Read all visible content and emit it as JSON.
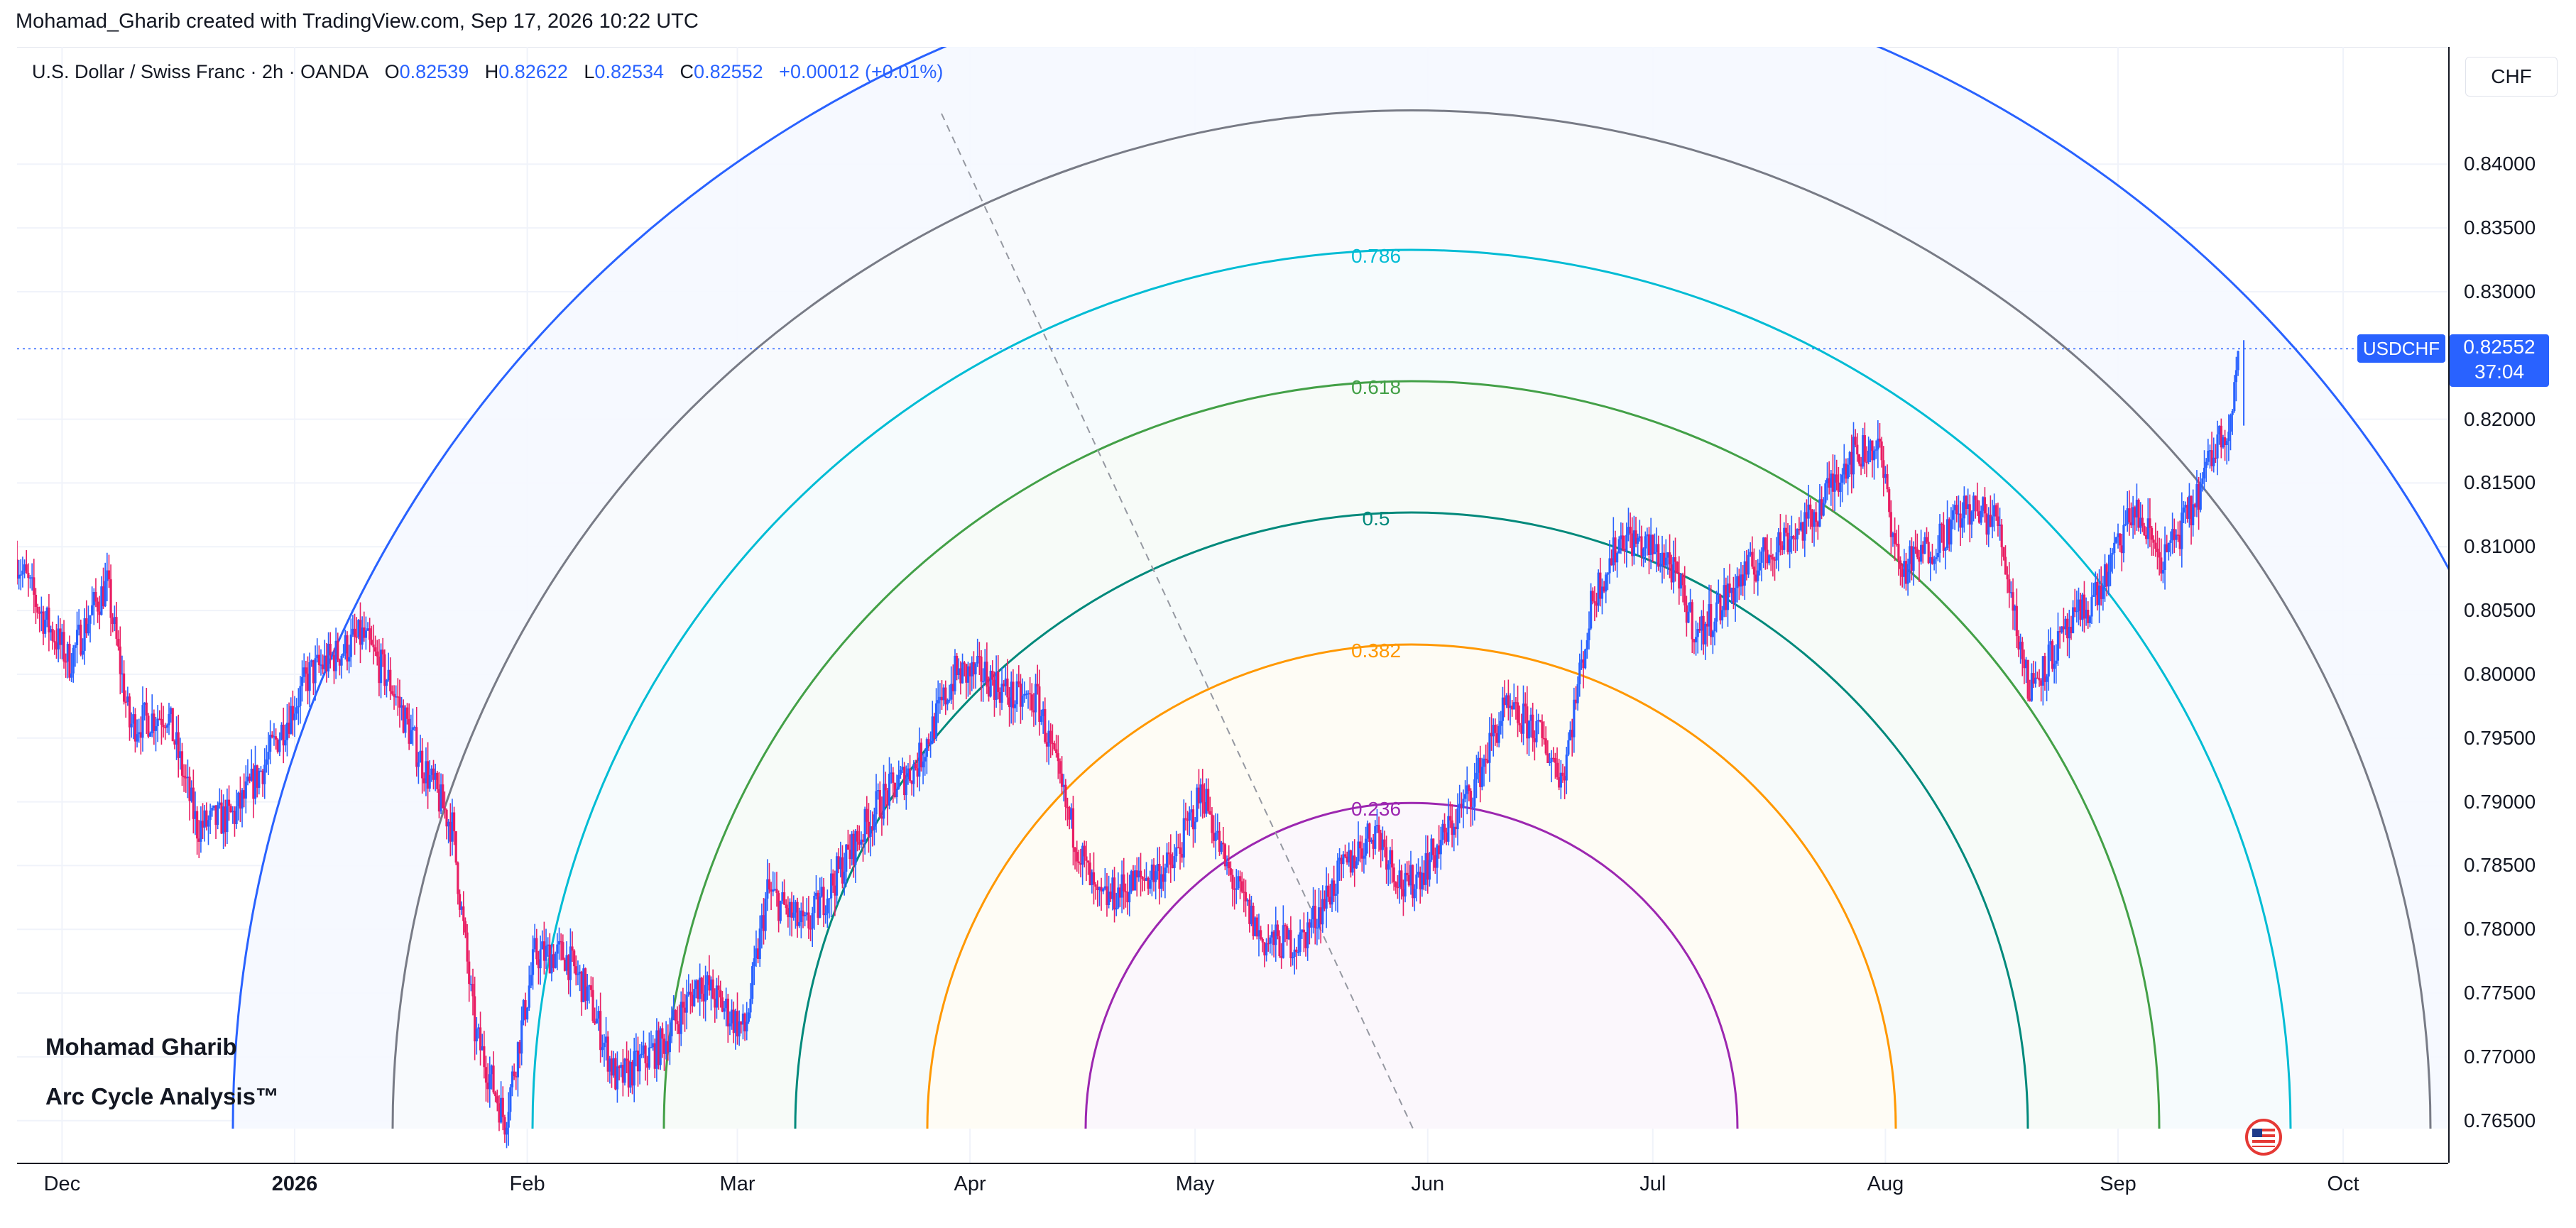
{
  "header": {
    "caption": "Mohamad_Gharib created with TradingView.com, Sep 17, 2026 10:22 UTC"
  },
  "legend": {
    "symbol_desc": "U.S. Dollar / Swiss Franc · 2h · OANDA",
    "open_label": "O",
    "open": "0.82539",
    "high_label": "H",
    "high": "0.82622",
    "low_label": "L",
    "low": "0.82534",
    "close_label": "C",
    "close": "0.82552",
    "change": "+0.00012 (+0.01%)"
  },
  "price_axis": {
    "currency": "CHF",
    "ticks": [
      "0.84000",
      "0.83500",
      "0.83000",
      "0.82000",
      "0.81500",
      "0.81000",
      "0.80500",
      "0.80000",
      "0.79500",
      "0.79000",
      "0.78500",
      "0.78000",
      "0.77500",
      "0.77000",
      "0.76500"
    ]
  },
  "time_axis": {
    "ticks": [
      "Dec",
      "2026",
      "Feb",
      "Mar",
      "Apr",
      "May",
      "Jun",
      "Jul",
      "Aug",
      "Sep",
      "Oct"
    ]
  },
  "last_price": {
    "symbol": "USDCHF",
    "value": "0.82552",
    "countdown": "37:04"
  },
  "watermark": {
    "line1": "Mohamad Gharib",
    "line2": "Arc Cycle Analysis™"
  },
  "colors": {
    "candle_up": "#2962ff",
    "candle_down": "#e91e63",
    "arc_236": "#9c27b0",
    "arc_382": "#ff9800",
    "arc_5": "#00897b",
    "arc_618": "#43a047",
    "arc_786": "#00bcd4",
    "arc_1": "#787b86",
    "arc_outer": "#2962ff"
  },
  "chart_data": {
    "type": "line",
    "title": "U.S. Dollar / Swiss Franc · 2h · OANDA",
    "xlabel": "",
    "ylabel": "",
    "x_range": [
      "2025-11-25",
      "2026-10-15"
    ],
    "ylim": [
      0.7617,
      0.8492
    ],
    "grid": true,
    "series": [
      {
        "name": "USDCHF",
        "points": [
          [
            "2025-11-25",
            0.809
          ],
          [
            "2025-11-28",
            0.805
          ],
          [
            "2025-12-02",
            0.801
          ],
          [
            "2025-12-05",
            0.805
          ],
          [
            "2025-12-07",
            0.807
          ],
          [
            "2025-12-10",
            0.796
          ],
          [
            "2025-12-15",
            0.797
          ],
          [
            "2025-12-19",
            0.788
          ],
          [
            "2025-12-24",
            0.789
          ],
          [
            "2025-12-28",
            0.793
          ],
          [
            "2026-01-03",
            0.8
          ],
          [
            "2026-01-10",
            0.803
          ],
          [
            "2026-01-14",
            0.799
          ],
          [
            "2026-01-18",
            0.793
          ],
          [
            "2026-01-22",
            0.788
          ],
          [
            "2026-01-25",
            0.772
          ],
          [
            "2026-01-29",
            0.765
          ],
          [
            "2026-02-02",
            0.778
          ],
          [
            "2026-02-06",
            0.778
          ],
          [
            "2026-02-09",
            0.775
          ],
          [
            "2026-02-13",
            0.768
          ],
          [
            "2026-02-19",
            0.771
          ],
          [
            "2026-02-24",
            0.776
          ],
          [
            "2026-03-02",
            0.772
          ],
          [
            "2026-03-05",
            0.783
          ],
          [
            "2026-03-10",
            0.78
          ],
          [
            "2026-03-15",
            0.785
          ],
          [
            "2026-03-20",
            0.79
          ],
          [
            "2026-03-25",
            0.793
          ],
          [
            "2026-03-30",
            0.8
          ],
          [
            "2026-04-03",
            0.8
          ],
          [
            "2026-04-07",
            0.798
          ],
          [
            "2026-04-10",
            0.798
          ],
          [
            "2026-04-14",
            0.789
          ],
          [
            "2026-04-18",
            0.782
          ],
          [
            "2026-04-24",
            0.784
          ],
          [
            "2026-04-28",
            0.785
          ],
          [
            "2026-05-02",
            0.791
          ],
          [
            "2026-05-05",
            0.785
          ],
          [
            "2026-05-10",
            0.779
          ],
          [
            "2026-05-15",
            0.779
          ],
          [
            "2026-05-20",
            0.784
          ],
          [
            "2026-05-25",
            0.788
          ],
          [
            "2026-05-29",
            0.783
          ],
          [
            "2026-06-02",
            0.786
          ],
          [
            "2026-06-07",
            0.791
          ],
          [
            "2026-06-11",
            0.797
          ],
          [
            "2026-06-15",
            0.796
          ],
          [
            "2026-06-19",
            0.792
          ],
          [
            "2026-06-23",
            0.806
          ],
          [
            "2026-06-27",
            0.811
          ],
          [
            "2026-07-03",
            0.809
          ],
          [
            "2026-07-07",
            0.803
          ],
          [
            "2026-07-12",
            0.807
          ],
          [
            "2026-07-17",
            0.81
          ],
          [
            "2026-07-22",
            0.812
          ],
          [
            "2026-07-27",
            0.817
          ],
          [
            "2026-07-31",
            0.818
          ],
          [
            "2026-08-03",
            0.808
          ],
          [
            "2026-08-07",
            0.81
          ],
          [
            "2026-08-12",
            0.813
          ],
          [
            "2026-08-16",
            0.812
          ],
          [
            "2026-08-20",
            0.799
          ],
          [
            "2026-08-25",
            0.803
          ],
          [
            "2026-08-30",
            0.807
          ],
          [
            "2026-09-03",
            0.813
          ],
          [
            "2026-09-07",
            0.809
          ],
          [
            "2026-09-11",
            0.813
          ],
          [
            "2026-09-14",
            0.818
          ],
          [
            "2026-09-16",
            0.82
          ],
          [
            "2026-09-17",
            0.8255
          ]
        ]
      }
    ],
    "fib_arc_levels": [
      "0.236",
      "0.382",
      "0.5",
      "0.618",
      "0.786"
    ],
    "last_value": 0.82552
  }
}
